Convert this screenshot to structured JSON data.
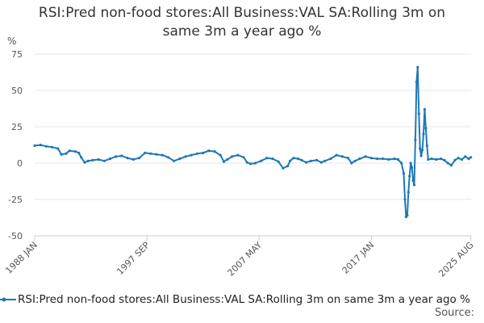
{
  "title_line1": "RSI:Pred non-food stores:All Business:VAL SA:Rolling 3m on",
  "title_line2": "same 3m a year ago %",
  "source_label": "Source:",
  "colors": {
    "series": "#1f78b4",
    "grid": "#e6e6e6",
    "axis": "#cccccc",
    "text": "#555555"
  },
  "chart_data": {
    "type": "line",
    "title": "RSI:Pred non-food stores:All Business:VAL SA:Rolling 3m on same 3m a year ago %",
    "ylabel": "%",
    "xlabel": "",
    "ylim": [
      -50,
      75
    ],
    "yticks": [
      75,
      50,
      25,
      0,
      -25,
      -50
    ],
    "xlim": [
      1988.0,
      2025.6
    ],
    "xticks": [
      {
        "label": "1988 JAN",
        "x": 1988.0
      },
      {
        "label": "1997 SEP",
        "x": 1997.67
      },
      {
        "label": "2007 MAY",
        "x": 2007.33
      },
      {
        "label": "2017 JAN",
        "x": 2017.0
      },
      {
        "label": "2025 AUG",
        "x": 2025.58
      }
    ],
    "legend": "bottom",
    "series": [
      {
        "name": "RSI:Pred non-food stores:All Business:VAL SA:Rolling 3m on same 3m a year ago %",
        "points": [
          [
            1988.0,
            12
          ],
          [
            1988.5,
            12.5
          ],
          [
            1989.0,
            11.5
          ],
          [
            1989.5,
            11
          ],
          [
            1990.0,
            10
          ],
          [
            1990.3,
            6
          ],
          [
            1990.7,
            6.5
          ],
          [
            1991.0,
            8.5
          ],
          [
            1991.5,
            8
          ],
          [
            1991.8,
            7
          ],
          [
            1992.0,
            4
          ],
          [
            1992.3,
            0.5
          ],
          [
            1992.6,
            1.5
          ],
          [
            1993.0,
            2
          ],
          [
            1993.5,
            2.5
          ],
          [
            1994.0,
            1.5
          ],
          [
            1994.5,
            3
          ],
          [
            1995.0,
            4.5
          ],
          [
            1995.5,
            5
          ],
          [
            1996.0,
            3.5
          ],
          [
            1996.5,
            2.5
          ],
          [
            1997.0,
            3.5
          ],
          [
            1997.5,
            7
          ],
          [
            1998.0,
            6.5
          ],
          [
            1998.5,
            6
          ],
          [
            1999.0,
            5.5
          ],
          [
            1999.5,
            4
          ],
          [
            2000.0,
            1.5
          ],
          [
            2000.5,
            3
          ],
          [
            2001.0,
            4.5
          ],
          [
            2001.5,
            5.5
          ],
          [
            2002.0,
            6.5
          ],
          [
            2002.5,
            7
          ],
          [
            2003.0,
            8.5
          ],
          [
            2003.5,
            8
          ],
          [
            2004.0,
            5.5
          ],
          [
            2004.3,
            1
          ],
          [
            2004.6,
            2.5
          ],
          [
            2005.0,
            4.5
          ],
          [
            2005.5,
            5.5
          ],
          [
            2006.0,
            4
          ],
          [
            2006.3,
            0.5
          ],
          [
            2006.6,
            -0.5
          ],
          [
            2007.0,
            0
          ],
          [
            2007.5,
            1.5
          ],
          [
            2008.0,
            3.5
          ],
          [
            2008.5,
            3
          ],
          [
            2009.0,
            1
          ],
          [
            2009.4,
            -3.5
          ],
          [
            2009.8,
            -2
          ],
          [
            2010.0,
            1.5
          ],
          [
            2010.3,
            3.5
          ],
          [
            2010.7,
            3
          ],
          [
            2011.0,
            2
          ],
          [
            2011.4,
            0.5
          ],
          [
            2011.8,
            1.5
          ],
          [
            2012.3,
            2
          ],
          [
            2012.7,
            0.5
          ],
          [
            2013.0,
            1.5
          ],
          [
            2013.5,
            3
          ],
          [
            2014.0,
            5.5
          ],
          [
            2014.5,
            4.5
          ],
          [
            2015.0,
            3.5
          ],
          [
            2015.3,
            0
          ],
          [
            2015.6,
            1.5
          ],
          [
            2016.0,
            3
          ],
          [
            2016.5,
            4.5
          ],
          [
            2017.0,
            3.5
          ],
          [
            2017.5,
            3
          ],
          [
            2018.0,
            3
          ],
          [
            2018.5,
            2.5
          ],
          [
            2019.0,
            3
          ],
          [
            2019.3,
            2.5
          ],
          [
            2019.6,
            0
          ],
          [
            2019.8,
            -7
          ],
          [
            2019.9,
            -25
          ],
          [
            2020.0,
            -37
          ],
          [
            2020.1,
            -36
          ],
          [
            2020.2,
            -20
          ],
          [
            2020.3,
            -9
          ],
          [
            2020.4,
            0
          ],
          [
            2020.5,
            -3
          ],
          [
            2020.6,
            -12
          ],
          [
            2020.7,
            -15
          ],
          [
            2020.8,
            16
          ],
          [
            2020.9,
            56
          ],
          [
            2021.0,
            66
          ],
          [
            2021.1,
            34
          ],
          [
            2021.2,
            10
          ],
          [
            2021.3,
            5
          ],
          [
            2021.4,
            9
          ],
          [
            2021.5,
            20
          ],
          [
            2021.6,
            37
          ],
          [
            2021.7,
            24
          ],
          [
            2021.8,
            12
          ],
          [
            2021.9,
            2.5
          ],
          [
            2022.2,
            3
          ],
          [
            2022.6,
            2.5
          ],
          [
            2023.0,
            3
          ],
          [
            2023.3,
            2
          ],
          [
            2023.6,
            0
          ],
          [
            2023.9,
            -1.5
          ],
          [
            2024.2,
            2
          ],
          [
            2024.5,
            3.5
          ],
          [
            2024.8,
            2.5
          ],
          [
            2025.1,
            4.5
          ],
          [
            2025.4,
            3
          ],
          [
            2025.58,
            4
          ]
        ]
      }
    ]
  }
}
